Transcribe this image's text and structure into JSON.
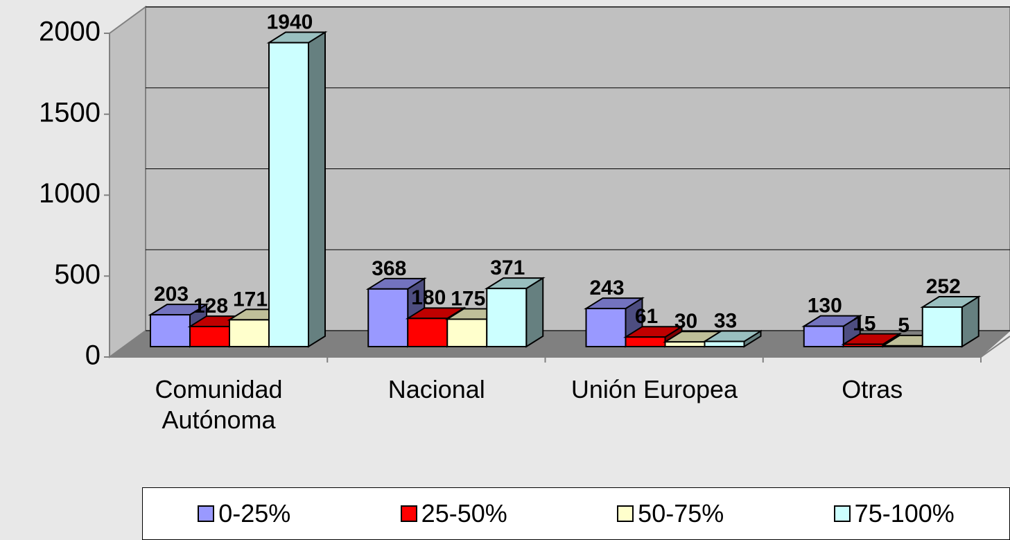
{
  "chart_data": {
    "type": "bar3d",
    "categories": [
      "Comunidad Autónoma",
      "Nacional",
      "Unión Europea",
      "Otras"
    ],
    "series": [
      {
        "name": "0-25%",
        "color": "#9999ff",
        "values": [
          203,
          368,
          243,
          130
        ]
      },
      {
        "name": "25-50%",
        "color": "#ff0000",
        "values": [
          128,
          180,
          61,
          15
        ]
      },
      {
        "name": "50-75%",
        "color": "#ffffcc",
        "values": [
          171,
          175,
          30,
          5
        ]
      },
      {
        "name": "75-100%",
        "color": "#ccffff",
        "values": [
          1940,
          371,
          33,
          252
        ]
      }
    ],
    "ylim": [
      0,
      2000
    ],
    "yticks": [
      0,
      500,
      1000,
      1500,
      2000
    ],
    "grid": true,
    "legend": "bottom"
  }
}
